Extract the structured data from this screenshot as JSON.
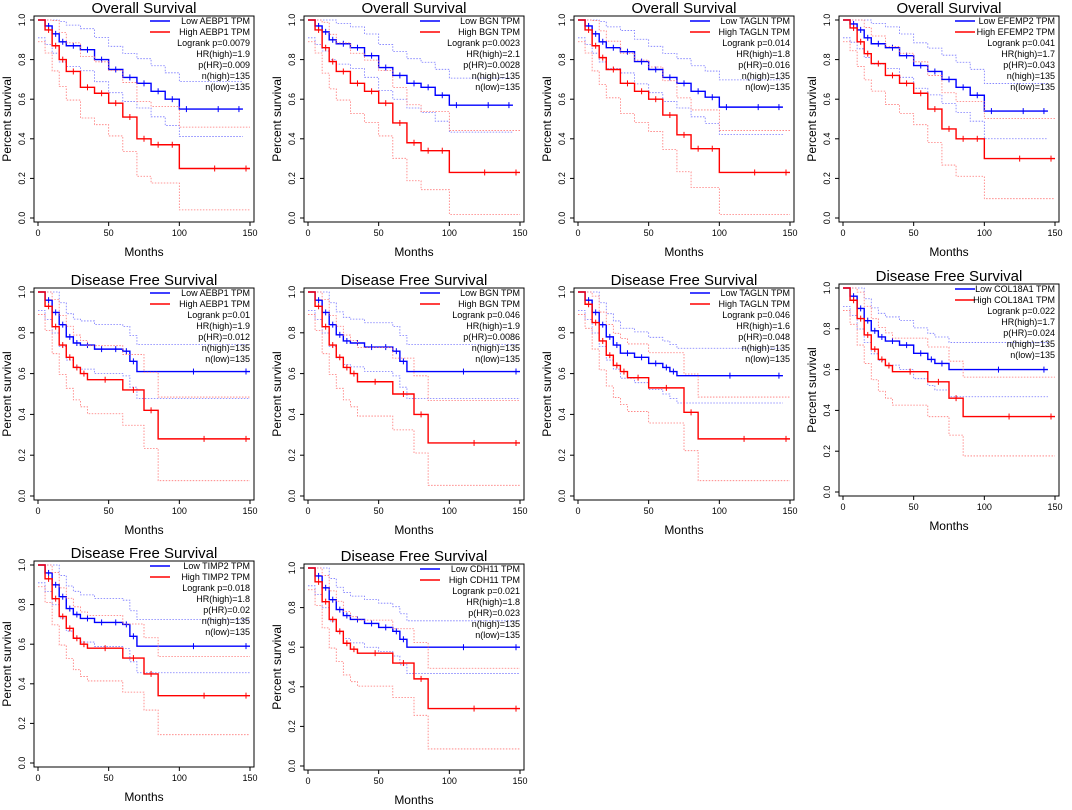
{
  "colors": {
    "low": "#0000ff",
    "high": "#ff0000",
    "axis": "#000000",
    "ci_low": "#7777ff",
    "ci_high": "#ff7777"
  },
  "chart_data": [
    {
      "type": "line",
      "title": "Overall Survival",
      "xlabel": "Months",
      "ylabel": "Percent survival",
      "xlim": [
        0,
        150
      ],
      "ylim": [
        0,
        1
      ],
      "x_ticks": [
        "0",
        "50",
        "100",
        "150"
      ],
      "y_ticks": [
        "0.0",
        "0.2",
        "0.4",
        "0.6",
        "0.8",
        "1.0"
      ],
      "legend": [
        "Low AEBP1 TPM",
        "High AEBP1 TPM"
      ],
      "stats": [
        "Logrank p=0.0079",
        "HR(high)=1.9",
        "p(HR)=0.009",
        "n(high)=135",
        "n(low)=135"
      ],
      "series": [
        {
          "name": "Low AEBP1 TPM",
          "x": [
            0,
            5,
            10,
            15,
            20,
            30,
            40,
            50,
            60,
            70,
            80,
            90,
            100,
            110,
            145
          ],
          "y": [
            1.0,
            0.97,
            0.93,
            0.89,
            0.87,
            0.85,
            0.8,
            0.75,
            0.71,
            0.68,
            0.64,
            0.6,
            0.55,
            0.55,
            0.55
          ]
        },
        {
          "name": "High AEBP1 TPM",
          "x": [
            0,
            5,
            10,
            15,
            20,
            30,
            40,
            50,
            60,
            70,
            80,
            90,
            100,
            150
          ],
          "y": [
            1.0,
            0.95,
            0.87,
            0.8,
            0.74,
            0.66,
            0.63,
            0.58,
            0.51,
            0.4,
            0.37,
            0.37,
            0.25,
            0.25
          ]
        }
      ]
    },
    {
      "type": "line",
      "title": "Overall Survival",
      "xlabel": "Months",
      "ylabel": "Percent survival",
      "xlim": [
        0,
        150
      ],
      "ylim": [
        0,
        1
      ],
      "x_ticks": [
        "0",
        "50",
        "100",
        "150"
      ],
      "y_ticks": [
        "0.0",
        "0.2",
        "0.4",
        "0.6",
        "0.8",
        "1.0"
      ],
      "legend": [
        "Low BGN TPM",
        "High BGN TPM"
      ],
      "stats": [
        "Logrank p=0.0023",
        "HR(high)=2.1",
        "p(HR)=0.0028",
        "n(high)=135",
        "n(low)=135"
      ],
      "series": [
        {
          "name": "Low BGN TPM",
          "x": [
            0,
            5,
            10,
            15,
            20,
            30,
            40,
            50,
            60,
            70,
            80,
            90,
            100,
            110,
            145
          ],
          "y": [
            1.0,
            0.97,
            0.94,
            0.9,
            0.88,
            0.86,
            0.82,
            0.76,
            0.72,
            0.68,
            0.66,
            0.62,
            0.57,
            0.57,
            0.57
          ]
        },
        {
          "name": "High BGN TPM",
          "x": [
            0,
            5,
            10,
            15,
            20,
            30,
            40,
            50,
            60,
            70,
            80,
            90,
            100,
            150
          ],
          "y": [
            1.0,
            0.95,
            0.86,
            0.79,
            0.74,
            0.68,
            0.64,
            0.58,
            0.48,
            0.38,
            0.34,
            0.34,
            0.23,
            0.23
          ]
        }
      ]
    },
    {
      "type": "line",
      "title": "Overall Survival",
      "xlabel": "Months",
      "ylabel": "Percent survival",
      "xlim": [
        0,
        150
      ],
      "ylim": [
        0,
        1
      ],
      "x_ticks": [
        "0",
        "50",
        "100",
        "150"
      ],
      "y_ticks": [
        "0.0",
        "0.2",
        "0.4",
        "0.6",
        "0.8",
        "1.0"
      ],
      "legend": [
        "Low TAGLN TPM",
        "High TAGLN TPM"
      ],
      "stats": [
        "Logrank p=0.014",
        "HR(high)=1.8",
        "p(HR)=0.016",
        "n(high)=135",
        "n(low)=135"
      ],
      "series": [
        {
          "name": "Low TAGLN TPM",
          "x": [
            0,
            5,
            10,
            15,
            20,
            30,
            40,
            50,
            60,
            70,
            80,
            90,
            100,
            110,
            145
          ],
          "y": [
            1.0,
            0.97,
            0.93,
            0.89,
            0.86,
            0.84,
            0.79,
            0.75,
            0.71,
            0.68,
            0.64,
            0.61,
            0.56,
            0.56,
            0.56
          ]
        },
        {
          "name": "High TAGLN TPM",
          "x": [
            0,
            5,
            10,
            15,
            20,
            30,
            40,
            50,
            60,
            70,
            80,
            90,
            100,
            150
          ],
          "y": [
            1.0,
            0.95,
            0.87,
            0.81,
            0.75,
            0.68,
            0.64,
            0.6,
            0.52,
            0.42,
            0.35,
            0.35,
            0.23,
            0.23
          ]
        }
      ]
    },
    {
      "type": "line",
      "title": "Overall Survival",
      "xlabel": "Months",
      "ylabel": "Percent survival",
      "xlim": [
        0,
        150
      ],
      "ylim": [
        0,
        1
      ],
      "x_ticks": [
        "0",
        "50",
        "100",
        "150"
      ],
      "y_ticks": [
        "0.0",
        "0.2",
        "0.4",
        "0.6",
        "0.8",
        "1.0"
      ],
      "legend": [
        "Low EFEMP2 TPM",
        "High EFEMP2 TPM"
      ],
      "stats": [
        "Logrank p=0.041",
        "HR(high)=1.7",
        "p(HR)=0.043",
        "n(high)=135",
        "n(low)=135"
      ],
      "series": [
        {
          "name": "Low EFEMP2 TPM",
          "x": [
            0,
            5,
            10,
            15,
            20,
            30,
            40,
            50,
            60,
            70,
            80,
            90,
            100,
            110,
            145
          ],
          "y": [
            1.0,
            0.98,
            0.95,
            0.91,
            0.88,
            0.86,
            0.82,
            0.77,
            0.74,
            0.7,
            0.66,
            0.62,
            0.54,
            0.54,
            0.54
          ]
        },
        {
          "name": "High EFEMP2 TPM",
          "x": [
            0,
            5,
            10,
            15,
            20,
            30,
            40,
            50,
            60,
            70,
            80,
            90,
            100,
            150
          ],
          "y": [
            1.0,
            0.96,
            0.89,
            0.83,
            0.78,
            0.72,
            0.68,
            0.63,
            0.55,
            0.45,
            0.4,
            0.4,
            0.3,
            0.3
          ]
        }
      ]
    },
    {
      "type": "line",
      "title": "Disease Free Survival",
      "xlabel": "Months",
      "ylabel": "Percent survival",
      "xlim": [
        0,
        150
      ],
      "ylim": [
        0,
        1
      ],
      "x_ticks": [
        "0",
        "50",
        "100",
        "150"
      ],
      "y_ticks": [
        "0.0",
        "0.2",
        "0.4",
        "0.6",
        "0.8",
        "1.0"
      ],
      "legend": [
        "Low AEBP1 TPM",
        "High AEBP1 TPM"
      ],
      "stats": [
        "Logrank p=0.01",
        "HR(high)=1.9",
        "p(HR)=0.012",
        "n(high)=135",
        "n(low)=135"
      ],
      "series": [
        {
          "name": "Low AEBP1 TPM",
          "x": [
            0,
            5,
            10,
            15,
            20,
            25,
            30,
            40,
            50,
            60,
            65,
            70,
            150
          ],
          "y": [
            1.0,
            0.96,
            0.9,
            0.84,
            0.78,
            0.75,
            0.74,
            0.72,
            0.72,
            0.71,
            0.66,
            0.61,
            0.61
          ]
        },
        {
          "name": "High AEBP1 TPM",
          "x": [
            0,
            5,
            10,
            15,
            20,
            25,
            30,
            35,
            60,
            75,
            85,
            150
          ],
          "y": [
            1.0,
            0.93,
            0.83,
            0.74,
            0.68,
            0.63,
            0.6,
            0.57,
            0.52,
            0.42,
            0.28,
            0.28
          ]
        }
      ]
    },
    {
      "type": "line",
      "title": "Disease Free Survival",
      "xlabel": "Months",
      "ylabel": "Percent survival",
      "xlim": [
        0,
        150
      ],
      "ylim": [
        0,
        1
      ],
      "x_ticks": [
        "0",
        "50",
        "100",
        "150"
      ],
      "y_ticks": [
        "0.0",
        "0.2",
        "0.4",
        "0.6",
        "0.8",
        "1.0"
      ],
      "legend": [
        "Low BGN TPM",
        "High BGN TPM"
      ],
      "stats": [
        "Logrank p=0.046",
        "HR(high)=1.9",
        "p(HR)=0.0086",
        "n(high)=135",
        "n(low)=135"
      ],
      "series": [
        {
          "name": "Low BGN TPM",
          "x": [
            0,
            5,
            10,
            15,
            20,
            25,
            30,
            40,
            50,
            60,
            65,
            70,
            150
          ],
          "y": [
            1.0,
            0.96,
            0.9,
            0.84,
            0.79,
            0.76,
            0.75,
            0.73,
            0.73,
            0.71,
            0.66,
            0.61,
            0.61
          ]
        },
        {
          "name": "High BGN TPM",
          "x": [
            0,
            5,
            10,
            15,
            20,
            25,
            30,
            35,
            60,
            75,
            85,
            150
          ],
          "y": [
            1.0,
            0.93,
            0.83,
            0.74,
            0.68,
            0.63,
            0.6,
            0.56,
            0.5,
            0.4,
            0.26,
            0.26
          ]
        }
      ]
    },
    {
      "type": "line",
      "title": "Disease Free Survival",
      "xlabel": "Months",
      "ylabel": "Percent survival",
      "xlim": [
        0,
        150
      ],
      "ylim": [
        0,
        1
      ],
      "x_ticks": [
        "0",
        "50",
        "100",
        "150"
      ],
      "y_ticks": [
        "0.0",
        "0.2",
        "0.4",
        "0.6",
        "0.8",
        "1.0"
      ],
      "legend": [
        "Low TAGLN TPM",
        "High TAGLN TPM"
      ],
      "stats": [
        "Logrank p=0.046",
        "HR(high)=1.6",
        "p(HR)=0.048",
        "n(high)=135",
        "n(low)=135"
      ],
      "series": [
        {
          "name": "Low TAGLN TPM",
          "x": [
            0,
            5,
            10,
            15,
            20,
            25,
            30,
            40,
            50,
            60,
            65,
            70,
            145
          ],
          "y": [
            1.0,
            0.96,
            0.9,
            0.84,
            0.78,
            0.74,
            0.7,
            0.68,
            0.65,
            0.63,
            0.61,
            0.59,
            0.59
          ]
        },
        {
          "name": "High TAGLN TPM",
          "x": [
            0,
            5,
            10,
            15,
            20,
            25,
            30,
            35,
            50,
            75,
            85,
            150
          ],
          "y": [
            1.0,
            0.94,
            0.85,
            0.76,
            0.69,
            0.64,
            0.61,
            0.58,
            0.53,
            0.41,
            0.28,
            0.28
          ]
        }
      ]
    },
    {
      "type": "line",
      "title": "Disease Free Survival",
      "xlabel": "Months",
      "ylabel": "Percent survival",
      "xlim": [
        0,
        150
      ],
      "ylim": [
        0,
        1
      ],
      "x_ticks": [
        "0",
        "50",
        "100",
        "150"
      ],
      "y_ticks": [
        "0.0",
        "0.2",
        "0.4",
        "0.6",
        "0.8",
        "1.0"
      ],
      "legend": [
        "Low COL18A1 TPM",
        "High COL18A1 TPM"
      ],
      "stats": [
        "Logrank p=0.022",
        "HR(high)=1.7",
        "p(HR)=0.024",
        "n(high)=135",
        "n(low)=135"
      ],
      "series": [
        {
          "name": "Low COL18A1 TPM",
          "x": [
            0,
            5,
            10,
            15,
            20,
            25,
            30,
            40,
            50,
            60,
            65,
            75,
            145
          ],
          "y": [
            1.0,
            0.96,
            0.9,
            0.84,
            0.79,
            0.76,
            0.74,
            0.72,
            0.68,
            0.65,
            0.63,
            0.6,
            0.6
          ]
        },
        {
          "name": "High COL18A1 TPM",
          "x": [
            0,
            5,
            10,
            15,
            20,
            25,
            30,
            35,
            60,
            75,
            85,
            150
          ],
          "y": [
            1.0,
            0.94,
            0.85,
            0.77,
            0.7,
            0.65,
            0.62,
            0.59,
            0.54,
            0.46,
            0.37,
            0.37
          ]
        }
      ]
    },
    {
      "type": "line",
      "title": "Disease Free Survival",
      "xlabel": "Months",
      "ylabel": "Percent survival",
      "xlim": [
        0,
        150
      ],
      "ylim": [
        0,
        1
      ],
      "x_ticks": [
        "0",
        "50",
        "100",
        "150"
      ],
      "y_ticks": [
        "0.0",
        "0.2",
        "0.4",
        "0.6",
        "0.8",
        "1.0"
      ],
      "legend": [
        "Low TIMP2 TPM",
        "High TIMP2 TPM"
      ],
      "stats": [
        "Logrank p=0.018",
        "HR(high)=1.8",
        "p(HR)=0.02",
        "n(high)=135",
        "n(low)=135"
      ],
      "series": [
        {
          "name": "Low TIMP2 TPM",
          "x": [
            0,
            5,
            10,
            15,
            20,
            25,
            30,
            40,
            50,
            60,
            65,
            70,
            150
          ],
          "y": [
            1.0,
            0.96,
            0.9,
            0.84,
            0.78,
            0.75,
            0.73,
            0.71,
            0.71,
            0.7,
            0.64,
            0.59,
            0.59
          ]
        },
        {
          "name": "High TIMP2 TPM",
          "x": [
            0,
            5,
            10,
            15,
            20,
            25,
            30,
            35,
            60,
            75,
            85,
            150
          ],
          "y": [
            1.0,
            0.93,
            0.83,
            0.74,
            0.68,
            0.63,
            0.6,
            0.58,
            0.53,
            0.45,
            0.34,
            0.34
          ]
        }
      ]
    },
    {
      "type": "line",
      "title": "Disease Free Survival",
      "xlabel": "Months",
      "ylabel": "Percent survival",
      "xlim": [
        0,
        150
      ],
      "ylim": [
        0,
        1
      ],
      "x_ticks": [
        "0",
        "50",
        "100",
        "150"
      ],
      "y_ticks": [
        "0.0",
        "0.2",
        "0.4",
        "0.6",
        "0.8",
        "1.0"
      ],
      "legend": [
        "Low CDH11 TPM",
        "High CDH11 TPM"
      ],
      "stats": [
        "Logrank p=0.021",
        "HR(high)=1.8",
        "p(HR)=0.023",
        "n(high)=135",
        "n(low)=135"
      ],
      "series": [
        {
          "name": "Low CDH11 TPM",
          "x": [
            0,
            5,
            10,
            15,
            20,
            25,
            30,
            40,
            50,
            60,
            65,
            70,
            150
          ],
          "y": [
            1.0,
            0.96,
            0.9,
            0.84,
            0.79,
            0.76,
            0.74,
            0.72,
            0.7,
            0.68,
            0.64,
            0.6,
            0.6
          ]
        },
        {
          "name": "High CDH11 TPM",
          "x": [
            0,
            5,
            10,
            15,
            20,
            25,
            30,
            35,
            60,
            75,
            85,
            150
          ],
          "y": [
            1.0,
            0.93,
            0.83,
            0.74,
            0.68,
            0.62,
            0.59,
            0.57,
            0.52,
            0.44,
            0.29,
            0.29
          ]
        }
      ]
    }
  ]
}
